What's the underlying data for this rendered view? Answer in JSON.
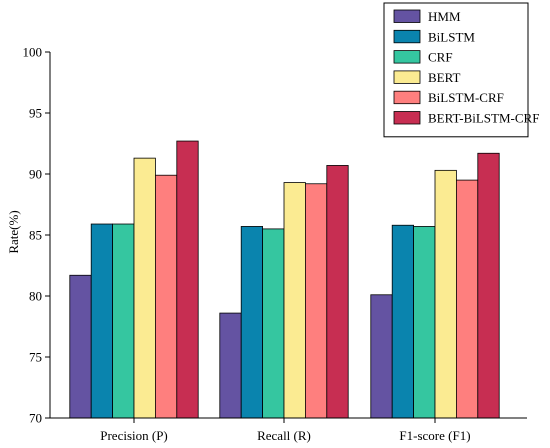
{
  "chart_data": {
    "type": "bar",
    "title": "",
    "xlabel": "",
    "ylabel": "Rate(%)",
    "ylim": [
      70,
      100
    ],
    "yticks": [
      70,
      75,
      80,
      85,
      90,
      95,
      100
    ],
    "grid": false,
    "legend_position": "top-right",
    "categories": [
      "Precision (P)",
      "Recall (R)",
      "F1-score (F1)"
    ],
    "series": [
      {
        "name": "HMM",
        "color": "#6453a2",
        "values": [
          81.7,
          78.6,
          80.1
        ]
      },
      {
        "name": "BiLSTM",
        "color": "#0a84ae",
        "values": [
          85.9,
          85.7,
          85.8
        ]
      },
      {
        "name": "CRF",
        "color": "#35c6a0",
        "values": [
          85.9,
          85.5,
          85.7
        ]
      },
      {
        "name": "BERT",
        "color": "#fbeb92",
        "values": [
          91.3,
          89.3,
          90.3
        ]
      },
      {
        "name": "BiLSTM-CRF",
        "color": "#fe7f7e",
        "values": [
          89.9,
          89.2,
          89.5
        ]
      },
      {
        "name": "BERT-BiLSTM-CRF",
        "color": "#c72e52",
        "values": [
          92.7,
          90.7,
          91.7
        ]
      }
    ]
  }
}
